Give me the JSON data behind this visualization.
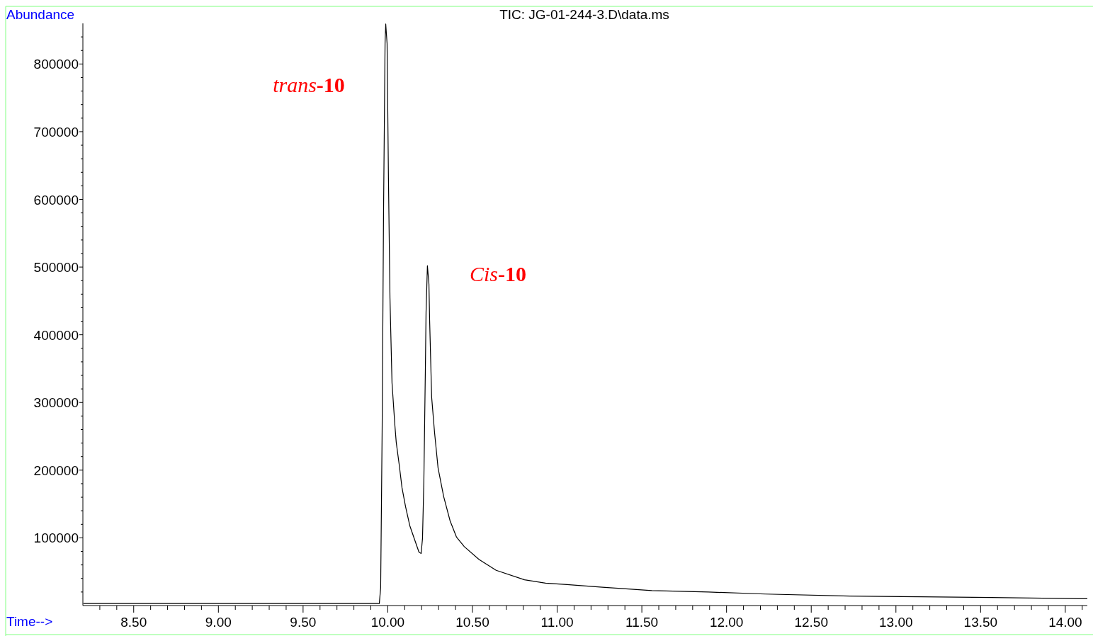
{
  "chart_data": {
    "type": "line",
    "title": "TIC: JG-01-244-3.D\\data.ms",
    "xlabel": "Time-->",
    "ylabel": "Abundance",
    "x": [
      8.203,
      8.55,
      8.968,
      9.386,
      9.804,
      9.95,
      9.958,
      9.967,
      9.975,
      9.984,
      9.988,
      9.996,
      10.004,
      10.013,
      10.025,
      10.042,
      10.05,
      10.067,
      10.084,
      10.105,
      10.13,
      10.159,
      10.184,
      10.197,
      10.205,
      10.213,
      10.222,
      10.226,
      10.234,
      10.243,
      10.247,
      10.259,
      10.276,
      10.297,
      10.33,
      10.368,
      10.406,
      10.452,
      10.539,
      10.64,
      10.807,
      10.932,
      11.058,
      11.267,
      11.559,
      11.893,
      12.228,
      12.729,
      13.147,
      13.565,
      14.13
    ],
    "series": [
      {
        "color": "#000000",
        "values": [
          3000,
          3000,
          3000,
          3000,
          3000,
          3000,
          26000,
          266000,
          580000,
          830000,
          859000,
          830000,
          632000,
          454000,
          329000,
          266000,
          241000,
          209000,
          174000,
          146000,
          118000,
          97000,
          79000,
          77000,
          99000,
          183000,
          350000,
          433000,
          502000,
          475000,
          423000,
          308000,
          256000,
          203000,
          161000,
          125000,
          101000,
          87000,
          68000,
          52000,
          38000,
          33000,
          31000,
          27000,
          22000,
          20000,
          17000,
          14000,
          13000,
          12000,
          10000
        ]
      }
    ],
    "xlim": [
      8.2,
      14.13
    ],
    "ylim": [
      0,
      860000
    ],
    "xticks": [
      {
        "value": 8.3,
        "label": null
      },
      {
        "value": 8.4,
        "label": null
      },
      {
        "value": 8.5,
        "label": "8.50"
      },
      {
        "value": 8.6,
        "label": null
      },
      {
        "value": 8.7,
        "label": null
      },
      {
        "value": 8.8,
        "label": null
      },
      {
        "value": 8.9,
        "label": null
      },
      {
        "value": 9,
        "label": "9.00"
      },
      {
        "value": 9.1,
        "label": null
      },
      {
        "value": 9.2,
        "label": null
      },
      {
        "value": 9.3,
        "label": null
      },
      {
        "value": 9.4,
        "label": null
      },
      {
        "value": 9.5,
        "label": "9.50"
      },
      {
        "value": 9.6,
        "label": null
      },
      {
        "value": 9.7,
        "label": null
      },
      {
        "value": 9.8,
        "label": null
      },
      {
        "value": 9.9,
        "label": null
      },
      {
        "value": 10,
        "label": "10.00"
      },
      {
        "value": 10.1,
        "label": null
      },
      {
        "value": 10.2,
        "label": null
      },
      {
        "value": 10.3,
        "label": null
      },
      {
        "value": 10.4,
        "label": null
      },
      {
        "value": 10.5,
        "label": "10.50"
      },
      {
        "value": 10.6,
        "label": null
      },
      {
        "value": 10.7,
        "label": null
      },
      {
        "value": 10.8,
        "label": null
      },
      {
        "value": 10.9,
        "label": null
      },
      {
        "value": 11,
        "label": "11.00"
      },
      {
        "value": 11.1,
        "label": null
      },
      {
        "value": 11.2,
        "label": null
      },
      {
        "value": 11.3,
        "label": null
      },
      {
        "value": 11.4,
        "label": null
      },
      {
        "value": 11.5,
        "label": "11.50"
      },
      {
        "value": 11.6,
        "label": null
      },
      {
        "value": 11.7,
        "label": null
      },
      {
        "value": 11.8,
        "label": null
      },
      {
        "value": 11.9,
        "label": null
      },
      {
        "value": 12,
        "label": "12.00"
      },
      {
        "value": 12.1,
        "label": null
      },
      {
        "value": 12.2,
        "label": null
      },
      {
        "value": 12.3,
        "label": null
      },
      {
        "value": 12.4,
        "label": null
      },
      {
        "value": 12.5,
        "label": "12.50"
      },
      {
        "value": 12.6,
        "label": null
      },
      {
        "value": 12.7,
        "label": null
      },
      {
        "value": 12.8,
        "label": null
      },
      {
        "value": 12.9,
        "label": null
      },
      {
        "value": 13,
        "label": "13.00"
      },
      {
        "value": 13.1,
        "label": null
      },
      {
        "value": 13.2,
        "label": null
      },
      {
        "value": 13.3,
        "label": null
      },
      {
        "value": 13.4,
        "label": null
      },
      {
        "value": 13.5,
        "label": "13.50"
      },
      {
        "value": 13.6,
        "label": null
      },
      {
        "value": 13.7,
        "label": null
      },
      {
        "value": 13.8,
        "label": null
      },
      {
        "value": 13.9,
        "label": null
      },
      {
        "value": 14,
        "label": "14.00"
      },
      {
        "value": 14.1,
        "label": null
      }
    ],
    "yticks": [
      {
        "value": 20000,
        "label": null
      },
      {
        "value": 40000,
        "label": null
      },
      {
        "value": 60000,
        "label": null
      },
      {
        "value": 80000,
        "label": null
      },
      100000,
      {
        "value": 120000,
        "label": null
      },
      {
        "value": 140000,
        "label": null
      },
      {
        "value": 160000,
        "label": null
      },
      {
        "value": 180000,
        "label": null
      },
      200000,
      {
        "value": 220000,
        "label": null
      },
      {
        "value": 240000,
        "label": null
      },
      {
        "value": 260000,
        "label": null
      },
      {
        "value": 280000,
        "label": null
      },
      300000,
      {
        "value": 320000,
        "label": null
      },
      {
        "value": 340000,
        "label": null
      },
      {
        "value": 360000,
        "label": null
      },
      {
        "value": 380000,
        "label": null
      },
      400000,
      {
        "value": 420000,
        "label": null
      },
      {
        "value": 440000,
        "label": null
      },
      {
        "value": 460000,
        "label": null
      },
      {
        "value": 480000,
        "label": null
      },
      500000,
      {
        "value": 520000,
        "label": null
      },
      {
        "value": 540000,
        "label": null
      },
      {
        "value": 560000,
        "label": null
      },
      {
        "value": 580000,
        "label": null
      },
      600000,
      {
        "value": 620000,
        "label": null
      },
      {
        "value": 640000,
        "label": null
      },
      {
        "value": 660000,
        "label": null
      },
      {
        "value": 680000,
        "label": null
      },
      700000,
      {
        "value": 720000,
        "label": null
      },
      {
        "value": 740000,
        "label": null
      },
      {
        "value": 760000,
        "label": null
      },
      {
        "value": 780000,
        "label": null
      },
      800000,
      {
        "value": 820000,
        "label": null
      },
      {
        "value": 840000,
        "label": null
      }
    ],
    "annotations": [
      "trans-10",
      "Cis-10"
    ],
    "grid": false,
    "marker": "none",
    "line_style": "solid"
  }
}
